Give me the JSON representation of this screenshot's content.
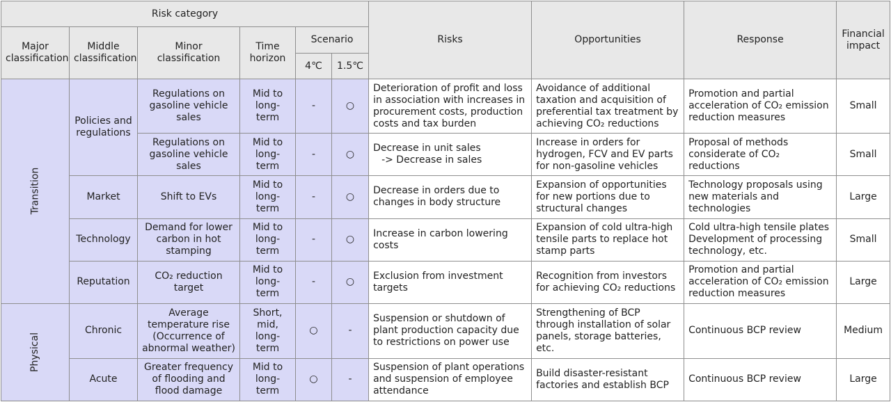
{
  "header": {
    "risk_category": "Risk category",
    "major": [
      "Major",
      "classification"
    ],
    "middle": [
      "Middle",
      "classification"
    ],
    "minor": "Minor classification",
    "time": [
      "Time",
      "horizon"
    ],
    "scenario": "Scenario",
    "s4": "4℃",
    "s15": "1.5℃",
    "risks": "Risks",
    "opportunities": "Opportunities",
    "response": "Response",
    "impact": [
      "Financial",
      "impact"
    ]
  },
  "groups": {
    "transition": "Transition",
    "physical": "Physical"
  },
  "middle": {
    "policies": [
      "Policies and",
      "regulations"
    ],
    "market": "Market",
    "technology": "Technology",
    "reputation": "Reputation",
    "chronic": "Chronic",
    "acute": "Acute"
  },
  "rows": [
    {
      "minor": [
        "Regulations on",
        "gasoline vehicle",
        "sales"
      ],
      "time": [
        "Mid to",
        "long-term"
      ],
      "s4": "-",
      "s15": "○",
      "risks": [
        "Deterioration of profit and loss",
        "in association with increases in",
        "procurement costs, production",
        "costs and tax burden"
      ],
      "opportunities": [
        "Avoidance of additional",
        "taxation and acquisition of",
        "preferential tax treatment by",
        "achieving CO₂ reductions"
      ],
      "response": [
        "Promotion and partial",
        "acceleration of CO₂ emission",
        "reduction measures"
      ],
      "impact": "Small"
    },
    {
      "minor": [
        "Regulations on",
        "gasoline vehicle",
        "sales"
      ],
      "time": [
        "Mid to",
        "long-term"
      ],
      "s4": "-",
      "s15": "○",
      "risks": [
        "Decrease in unit sales",
        "-> Decrease in sales"
      ],
      "opportunities": [
        "Increase in orders for",
        "hydrogen, FCV and EV parts",
        "for non-gasoline vehicles"
      ],
      "response": [
        "Proposal of methods",
        "considerate of CO₂",
        "reductions"
      ],
      "impact": "Small"
    },
    {
      "minor": [
        "Shift to EVs"
      ],
      "time": [
        "Mid to",
        "long-term"
      ],
      "s4": "-",
      "s15": "○",
      "risks": [
        "Decrease in orders due to",
        "changes in body structure"
      ],
      "opportunities": [
        "Expansion of opportunities",
        "for new portions due to",
        "structural changes"
      ],
      "response": [
        "Technology proposals using",
        "new materials and",
        "technologies"
      ],
      "impact": "Large"
    },
    {
      "minor": [
        "Demand for lower",
        "carbon in hot",
        "stamping"
      ],
      "time": [
        "Mid to",
        "long-term"
      ],
      "s4": "-",
      "s15": "○",
      "risks": [
        "Increase in carbon lowering",
        "costs"
      ],
      "opportunities": [
        "Expansion of cold ultra-high",
        "tensile parts to replace hot",
        "stamp parts"
      ],
      "response": [
        "Cold ultra-high tensile plates",
        "Development of processing",
        "technology, etc."
      ],
      "impact": "Small"
    },
    {
      "minor": [
        "CO₂ reduction",
        "target"
      ],
      "time": [
        "Mid to",
        "long-term"
      ],
      "s4": "-",
      "s15": "○",
      "risks": [
        "Exclusion from investment",
        "targets"
      ],
      "opportunities": [
        "Recognition from investors",
        "for achieving CO₂ reductions"
      ],
      "response": [
        "Promotion and partial",
        "acceleration of CO₂ emission",
        "reduction measures"
      ],
      "impact": "Large"
    },
    {
      "minor": [
        "Average",
        "temperature rise",
        "(Occurrence of",
        "abnormal weather)"
      ],
      "time": [
        "Short,",
        "mid,",
        "long-term"
      ],
      "s4": "○",
      "s15": "-",
      "risks": [
        "Suspension or shutdown of",
        "plant production capacity due",
        "to restrictions on power use"
      ],
      "opportunities": [
        "Strengthening of BCP",
        "through installation of solar",
        "panels, storage batteries,",
        "etc."
      ],
      "response": [
        "Continuous BCP review"
      ],
      "impact": "Medium"
    },
    {
      "minor": [
        "Greater frequency",
        "of flooding and",
        "flood damage"
      ],
      "time": [
        "Mid to",
        "long-term"
      ],
      "s4": "○",
      "s15": "-",
      "risks": [
        "Suspension of plant operations",
        "and suspension of employee",
        "attendance"
      ],
      "opportunities": [
        "Build disaster-resistant",
        "factories and establish BCP"
      ],
      "response": [
        "Continuous BCP review"
      ],
      "impact": "Large"
    }
  ]
}
